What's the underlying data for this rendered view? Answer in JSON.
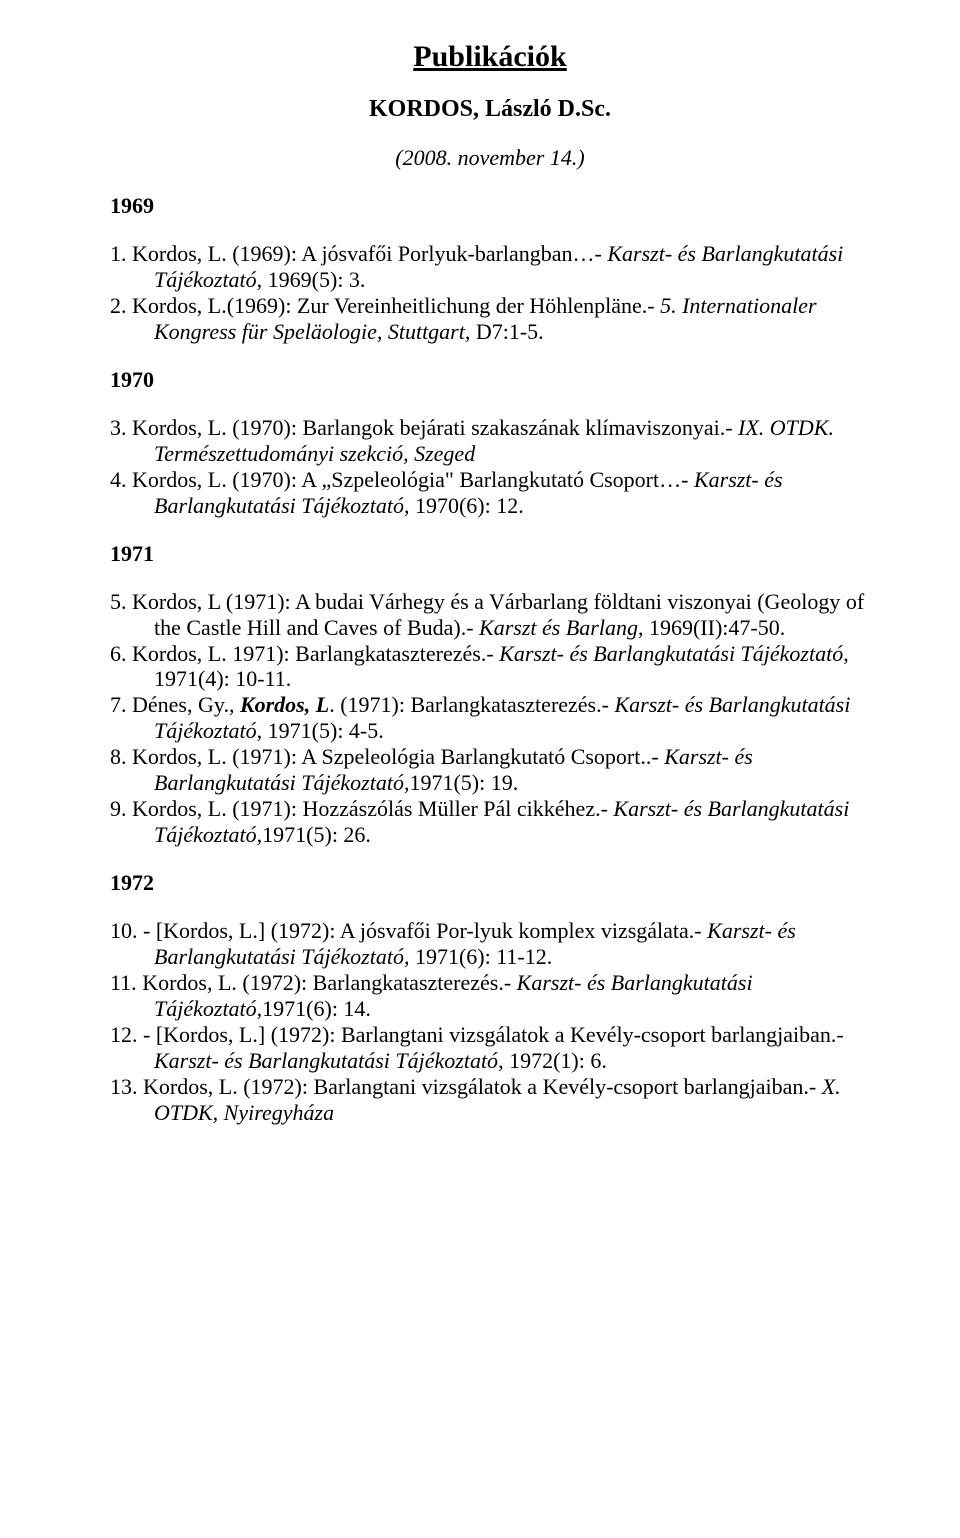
{
  "title": "Publikációk",
  "author": "KORDOS, László D.Sc.",
  "date": "(2008. november 14.)",
  "sections": [
    {
      "year": "1969",
      "entries": [
        {
          "n": "1.",
          "plain1": " Kordos, L. (1969): A jósvafői Porlyuk-barlangban…- ",
          "it1": "Karszt- és Barlangkutatási Tájékoztató",
          "plain2": ", 1969(5): 3."
        },
        {
          "n": "2.",
          "plain1": " Kordos, L.(1969): Zur Vereinheitlichung der Höhlenpläne.- ",
          "it1": "5. Internationaler Kongress für Speläologie, Stuttgart",
          "plain2": ", D7:1-5."
        }
      ]
    },
    {
      "year": "1970",
      "entries": [
        {
          "n": "3.",
          "plain1": " Kordos, L. (1970): Barlangok bejárati szakaszának klímaviszonyai.- ",
          "it1": "IX. OTDK. Természettudományi szekció, Szeged",
          "plain2": ""
        },
        {
          "n": "4.",
          "plain1": " Kordos, L. (1970): A „Szpeleológia\" Barlangkutató Csoport…- ",
          "it1": "Karszt- és Barlangkutatási Tájékoztató",
          "plain2": ", 1970(6): 12."
        }
      ]
    },
    {
      "year": "1971",
      "entries": [
        {
          "n": "5.",
          "plain1": " Kordos, L (1971): A budai Várhegy és a Várbarlang földtani viszonyai (Geology of the Castle Hill and Caves of Buda).- ",
          "it1": "Karszt és Barlang",
          "plain2": ", 1969(II):47-50."
        },
        {
          "n": "6.",
          "plain1": " Kordos, L. 1971): Barlangkataszterezés.- ",
          "it1": "Karszt- és Barlangkutatási Tájékoztató",
          "plain2": ", 1971(4): 10-11."
        },
        {
          "n": "7.",
          "plain1": " Dénes, Gy., ",
          "bi": "Kordos, L",
          "plain1b": ". (1971): Barlangkataszterezés.- ",
          "it1": "Karszt- és Barlangkutatási Tájékoztató",
          "plain2": ", 1971(5): 4-5."
        },
        {
          "n": "8.",
          "plain1": " Kordos, L. (1971): A Szpeleológia Barlangkutató Csoport..- ",
          "it1": "Karszt- és Barlangkutatási Tájékoztató,",
          "plain2": "1971(5): 19."
        },
        {
          "n": "9.",
          "plain1": " Kordos, L. (1971): Hozzászólás Müller Pál cikkéhez.- ",
          "it1": "Karszt- és Barlangkutatási Tájékoztató,",
          "plain2": "1971(5): 26."
        }
      ]
    },
    {
      "year": "1972",
      "entries": [
        {
          "n": "10.",
          "plain1": " - [Kordos, L.] (1972): A jósvafői Por-lyuk komplex vizsgálata.- ",
          "it1": "Karszt- és Barlangkutatási Tájékoztató",
          "plain2": ", 1971(6): 11-12."
        },
        {
          "n": "11.",
          "plain1": " Kordos, L. (1972): Barlangkataszterezés.- ",
          "it1": "Karszt- és Barlangkutatási Tájékoztató,",
          "plain2": "1971(6): 14."
        },
        {
          "n": "12.",
          "plain1": " - [Kordos, L.] (1972): Barlangtani vizsgálatok a Kevély-csoport barlangjaiban.- ",
          "it1": "Karszt- és Barlangkutatási Tájékoztató",
          "plain2": ", 1972(1): 6."
        },
        {
          "n": "13.",
          "plain1": " Kordos, L. (1972): Barlangtani vizsgálatok a Kevély-csoport barlangjaiban.- ",
          "it1": "X. OTDK, Nyiregyháza",
          "plain2": ""
        }
      ]
    }
  ]
}
